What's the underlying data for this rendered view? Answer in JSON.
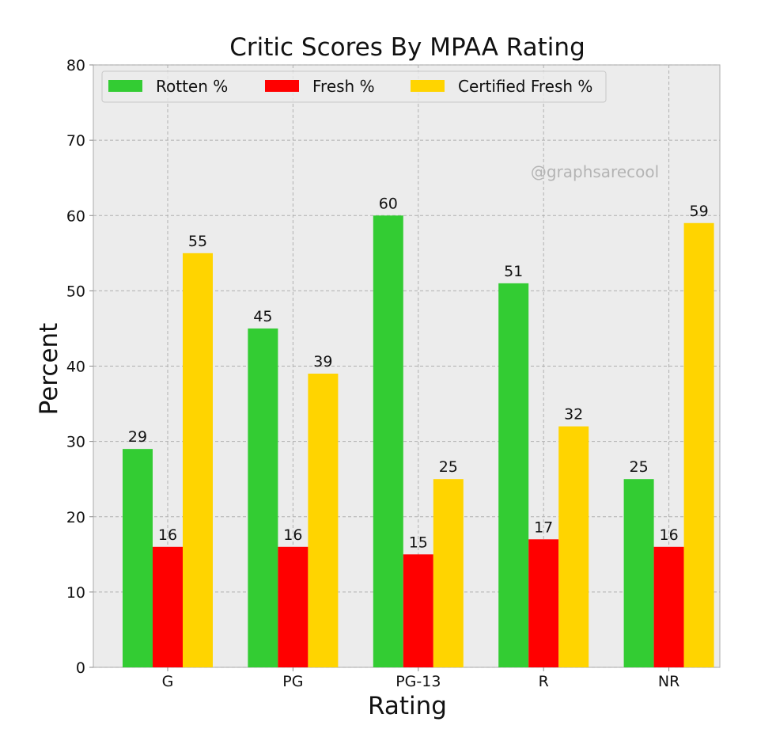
{
  "chart_data": {
    "type": "bar",
    "title": "Critic Scores By MPAA Rating",
    "xlabel": "Rating",
    "ylabel": "Percent",
    "categories": [
      "G",
      "PG",
      "PG-13",
      "R",
      "NR"
    ],
    "series": [
      {
        "name": "Rotten %",
        "color": "#33cc33",
        "values": [
          29,
          45,
          60,
          51,
          25
        ]
      },
      {
        "name": "Fresh %",
        "color": "#ff0000",
        "values": [
          16,
          16,
          15,
          17,
          16
        ]
      },
      {
        "name": "Certified Fresh %",
        "color": "#ffd400",
        "values": [
          55,
          39,
          25,
          32,
          59
        ]
      }
    ],
    "ylim": [
      0,
      80
    ],
    "yticks": [
      0,
      10,
      20,
      30,
      40,
      50,
      60,
      70,
      80
    ],
    "grid": true,
    "legend_position": "top-left",
    "plot_background": "#ececec",
    "annotation": "@graphsarecool"
  }
}
